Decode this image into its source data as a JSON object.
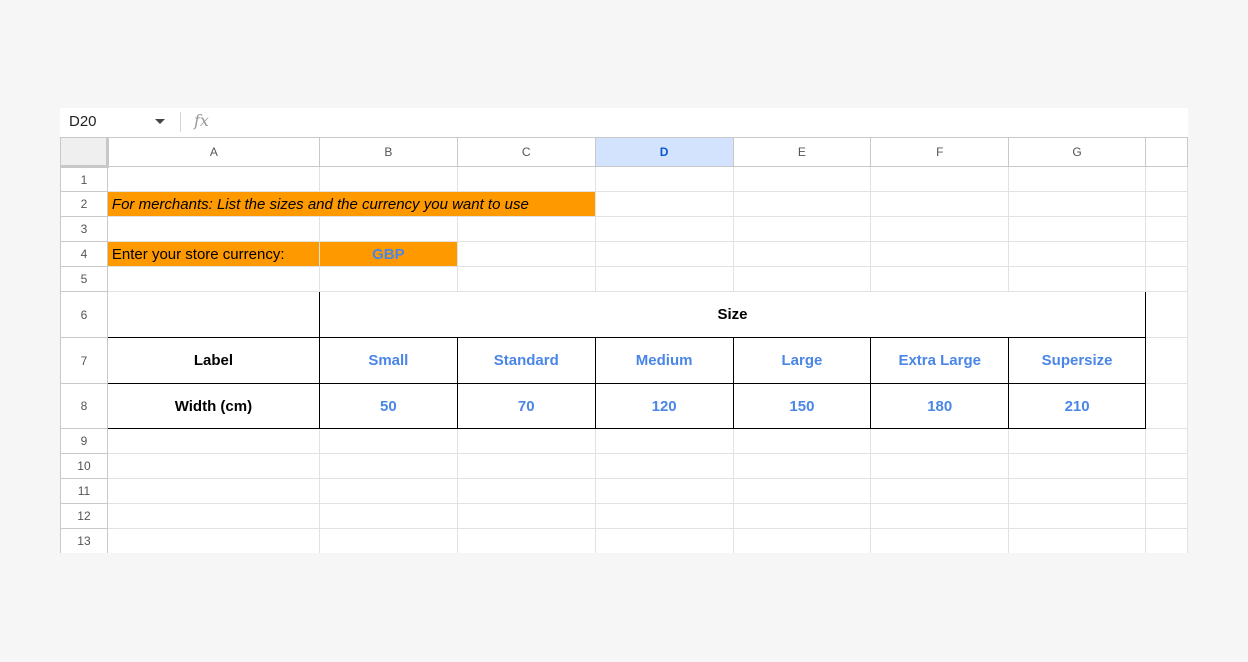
{
  "namebox": "D20",
  "fx_label": "fx",
  "columns": [
    "A",
    "B",
    "C",
    "D",
    "E",
    "F",
    "G"
  ],
  "selected_column": "D",
  "rows": [
    "1",
    "2",
    "3",
    "4",
    "5",
    "6",
    "7",
    "8",
    "9",
    "10",
    "11",
    "12",
    "13"
  ],
  "cells": {
    "A2": "For merchants: List the sizes and the currency you want to use",
    "A4": "Enter your store currency:",
    "B4": "GBP",
    "B6": "Size",
    "A7": "Label",
    "sizes": [
      "Small",
      "Standard",
      "Medium",
      "Large",
      "Extra Large",
      "Supersize"
    ],
    "A8": "Width (cm)",
    "widths": [
      "50",
      "70",
      "120",
      "150",
      "180",
      "210"
    ]
  },
  "colors": {
    "highlight": "#ff9900",
    "value_text": "#4a86e8",
    "selected_header": "#d3e3fd"
  }
}
